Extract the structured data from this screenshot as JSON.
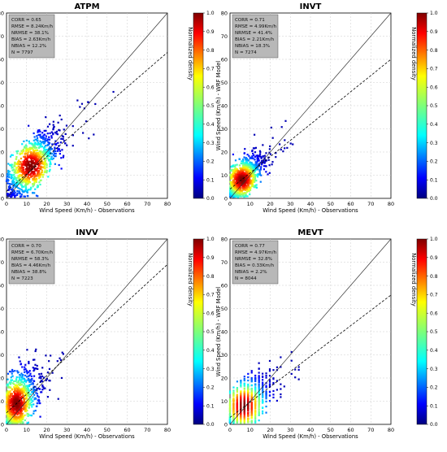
{
  "figure": {
    "xlabel": "Wind Speed (Km/h) - Observations",
    "ylabel": "Wind Speed (Km/h) - WRF Model",
    "colorbar_label": "Normalized density",
    "colorbar_ticks": [
      "0.0",
      "0.1",
      "0.2",
      "0.3",
      "0.4",
      "0.5",
      "0.6",
      "0.7",
      "0.8",
      "0.9",
      "1.0"
    ],
    "axis_ticks": [
      "0",
      "10",
      "20",
      "30",
      "40",
      "50",
      "60",
      "70",
      "80"
    ]
  },
  "chart_data": [
    {
      "type": "scatter",
      "title": "ATPM",
      "xlabel": "Wind Speed (Km/h) - Observations",
      "ylabel": "Wind Speed (Km/h) - WRF Model",
      "xlim": [
        0,
        80
      ],
      "ylim": [
        0,
        80
      ],
      "grid": true,
      "stats": [
        "CORR = 0.65",
        "RMSE = 8.24Km/h",
        "NRMSE = 38.1%",
        "BIAS = 2.63Km/h",
        "NBIAS = 12.2%",
        "N = 7797"
      ],
      "regression_line": {
        "slope": 0.75,
        "intercept": 3.0
      },
      "density_center": [
        12,
        14
      ],
      "spread": [
        6.5,
        6.5
      ],
      "xmax_obs": 60,
      "colorbar": {
        "label": "Normalized density",
        "range": [
          0.0,
          1.0
        ]
      }
    },
    {
      "type": "scatter",
      "title": "INVT",
      "xlabel": "Wind Speed (Km/h) - Observations",
      "ylabel": "Wind Speed (Km/h) - WRF Model",
      "xlim": [
        0,
        80
      ],
      "ylim": [
        0,
        80
      ],
      "grid": true,
      "stats": [
        "CORR = 0.71",
        "RMSE = 4.99Km/h",
        "NRMSE = 41.4%",
        "BIAS = 2.21Km/h",
        "NBIAS = 18.3%",
        "N = 7274"
      ],
      "regression_line": {
        "slope": 0.7,
        "intercept": 4.0
      },
      "density_center": [
        6,
        8
      ],
      "spread": [
        5,
        5
      ],
      "xmax_obs": 32,
      "colorbar": {
        "label": "Normalized density",
        "range": [
          0.0,
          1.0
        ]
      }
    },
    {
      "type": "scatter",
      "title": "INVV",
      "xlabel": "Wind Speed (Km/h) - Observations",
      "ylabel": "Wind Speed (Km/h) - WRF Model",
      "xlim": [
        0,
        80
      ],
      "ylim": [
        0,
        80
      ],
      "grid": true,
      "stats": [
        "CORR = 0.70",
        "RMSE = 6.70Km/h",
        "NRMSE = 58.3%",
        "BIAS = 4.46Km/h",
        "NBIAS = 38.8%",
        "N = 7223"
      ],
      "regression_line": {
        "slope": 0.8,
        "intercept": 5.0
      },
      "density_center": [
        5,
        9
      ],
      "spread": [
        5,
        7
      ],
      "xmax_obs": 30,
      "colorbar": {
        "label": "Normalized density",
        "range": [
          0.0,
          1.0
        ]
      }
    },
    {
      "type": "scatter",
      "title": "MEVT",
      "xlabel": "Wind Speed (Km/h) - Observations",
      "ylabel": "Wind Speed (Km/h) - WRF Model",
      "xlim": [
        0,
        80
      ],
      "ylim": [
        0,
        80
      ],
      "grid": true,
      "stats": [
        "CORR = 0.77",
        "RMSE = 4.97Km/h",
        "NRMSE = 32.8%",
        "BIAS = 0.33Km/h",
        "NBIAS = 2.2%",
        "N = 8044"
      ],
      "regression_line": {
        "slope": 0.66,
        "intercept": 3.0
      },
      "density_center": [
        7,
        8
      ],
      "spread": [
        6,
        6
      ],
      "xmax_obs": 35,
      "colorbar": {
        "label": "Normalized density",
        "range": [
          0.0,
          1.0
        ]
      }
    }
  ]
}
